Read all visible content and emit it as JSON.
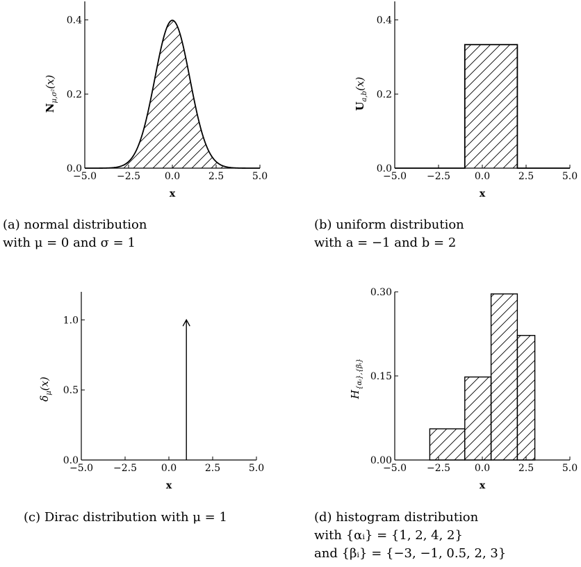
{
  "chart_data": [
    {
      "id": "a",
      "type": "area",
      "function": "normal",
      "mu": 0,
      "sigma": 1,
      "xlim": [
        -5.0,
        5.0
      ],
      "ylim": [
        0.0,
        0.45
      ],
      "xticks": [
        "−5.0",
        "−2.5",
        "0.0",
        "2.5",
        "5.0"
      ],
      "xtick_values": [
        -5,
        -2.5,
        0,
        2.5,
        5
      ],
      "yticks": [
        "0.0",
        "0.2",
        "0.4"
      ],
      "ytick_values": [
        0,
        0.2,
        0.4
      ],
      "xlabel": "x",
      "ylabel": "N",
      "ylabel_sub": "μ,σ²",
      "ylabel_arg": "(x)",
      "fill": "hatched",
      "caption_line1": "(a) normal distribution",
      "caption_line2": "with μ = 0 and σ = 1"
    },
    {
      "id": "b",
      "type": "area",
      "function": "uniform",
      "a": -1,
      "b": 2,
      "value": 0.3333,
      "xlim": [
        -5.0,
        5.0
      ],
      "ylim": [
        0.0,
        0.45
      ],
      "xticks": [
        "−5.0",
        "−2.5",
        "0.0",
        "2.5",
        "5.0"
      ],
      "xtick_values": [
        -5,
        -2.5,
        0,
        2.5,
        5
      ],
      "yticks": [
        "0.0",
        "0.2",
        "0.4"
      ],
      "ytick_values": [
        0,
        0.2,
        0.4
      ],
      "xlabel": "x",
      "ylabel": "U",
      "ylabel_sub": "a,b",
      "ylabel_arg": "(x)",
      "fill": "hatched",
      "caption_line1": "(b) uniform distribution",
      "caption_line2": "with a = −1 and b = 2"
    },
    {
      "id": "c",
      "type": "line",
      "function": "dirac",
      "mu": 1,
      "value": 1.0,
      "xlim": [
        -5.0,
        5.0
      ],
      "ylim": [
        0.0,
        1.2
      ],
      "xticks": [
        "−5.0",
        "−2.5",
        "0.0",
        "2.5",
        "5.0"
      ],
      "xtick_values": [
        -5,
        -2.5,
        0,
        2.5,
        5
      ],
      "yticks": [
        "0.0",
        "0.5",
        "1.0"
      ],
      "ytick_values": [
        0,
        0.5,
        1.0
      ],
      "xlabel": "x",
      "ylabel": "δ",
      "ylabel_sub": "μ",
      "ylabel_arg": "(x)",
      "caption_line1": "(c) Dirac distribution with μ = 1"
    },
    {
      "id": "d",
      "type": "bar",
      "function": "histogram",
      "edges": [
        -3,
        -1,
        0.5,
        2,
        3
      ],
      "values": [
        0.0556,
        0.1481,
        0.2963,
        0.2222
      ],
      "xlim": [
        -5.0,
        5.0
      ],
      "ylim": [
        0.0,
        0.3
      ],
      "xticks": [
        "−5.0",
        "−2.5",
        "0.0",
        "2.5",
        "5.0"
      ],
      "xtick_values": [
        -5,
        -2.5,
        0,
        2.5,
        5
      ],
      "yticks": [
        "0.00",
        "0.15",
        "0.30"
      ],
      "ytick_values": [
        0,
        0.15,
        0.3
      ],
      "xlabel": "x",
      "ylabel": "H",
      "ylabel_sub": "{αᵢ},{βᵢ}",
      "ylabel_arg": "",
      "fill": "hatched",
      "caption_line1": "(d) histogram distribution",
      "caption_line2": "with {αᵢ} = {1, 2, 4, 2}",
      "caption_line3": "and {βᵢ} = {−3, −1, 0.5, 2, 3}"
    }
  ]
}
